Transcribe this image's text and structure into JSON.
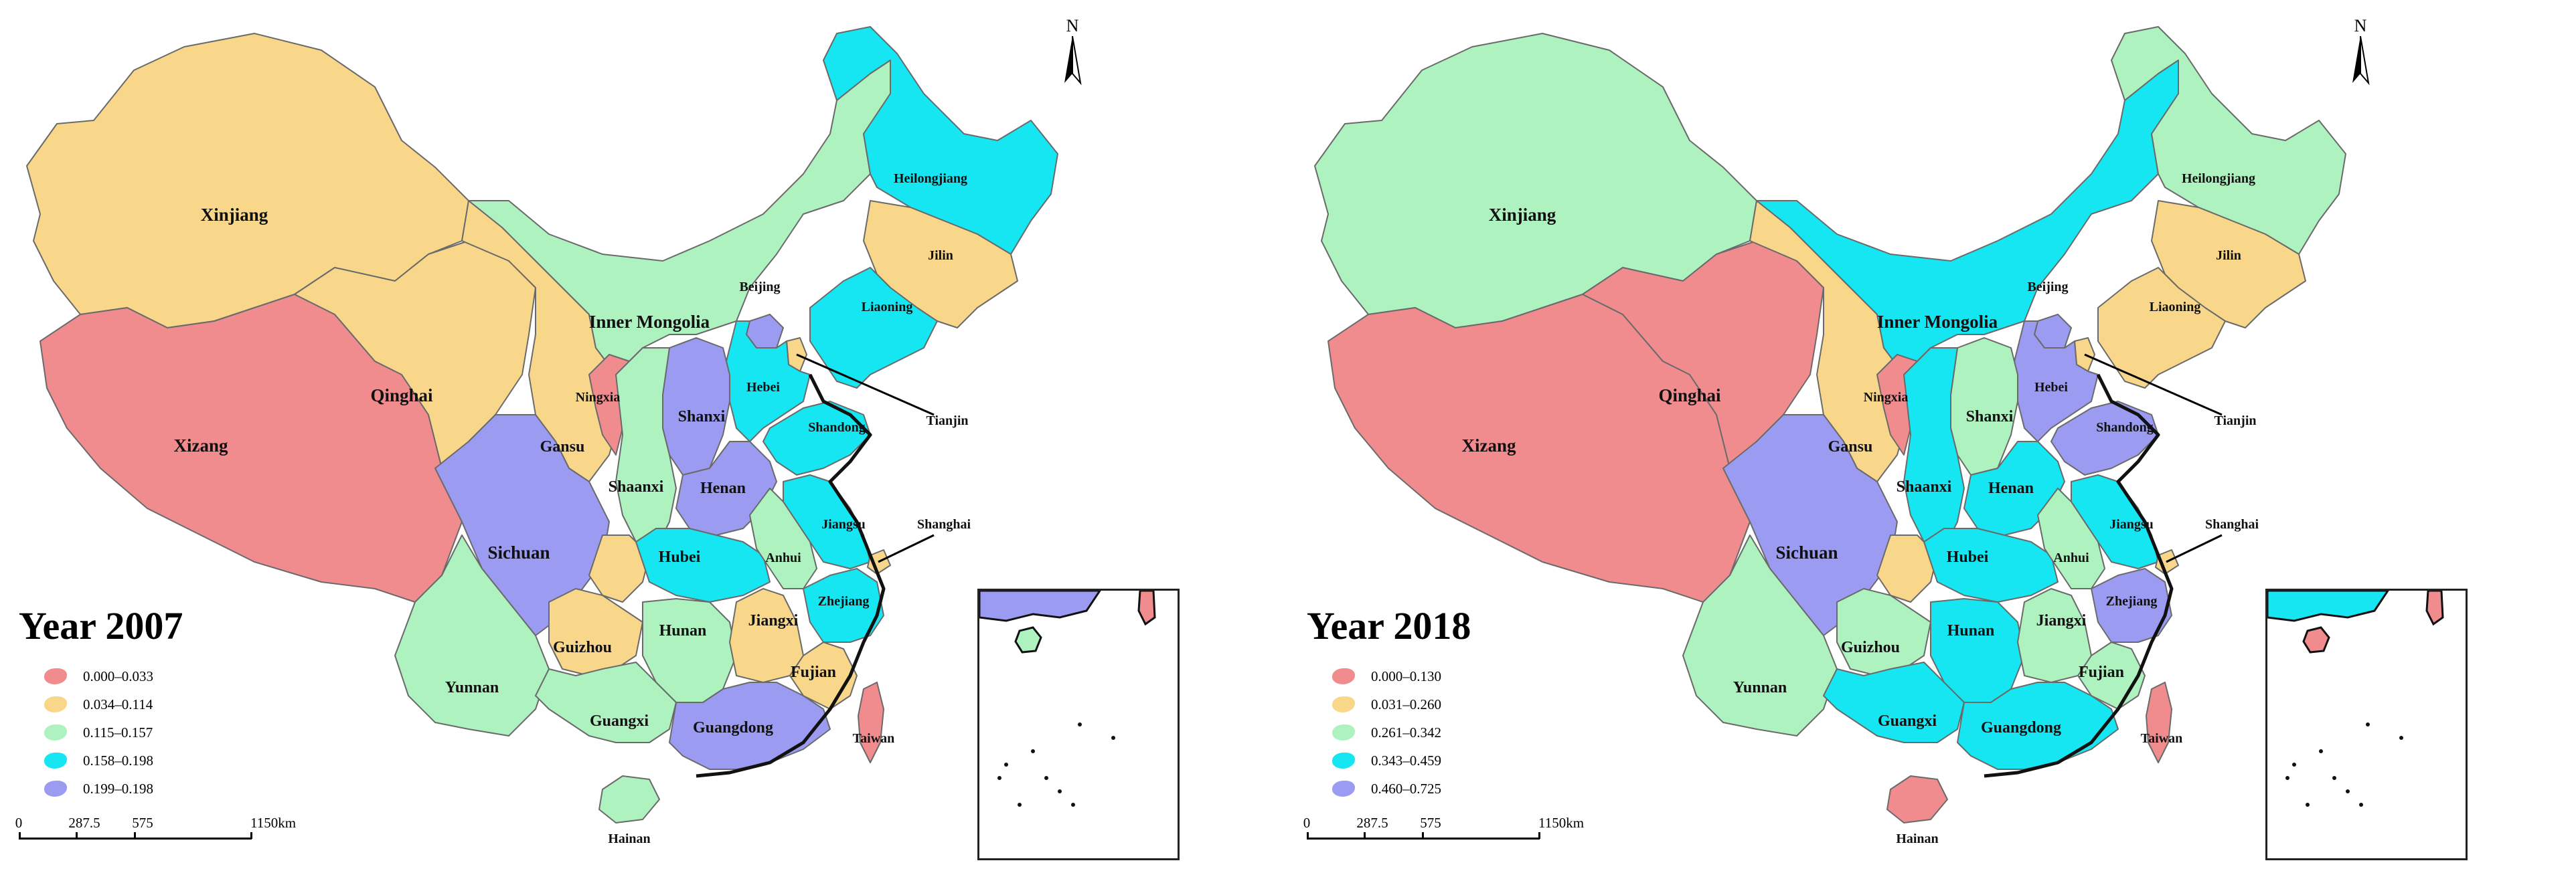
{
  "panels": [
    {
      "id": "p2007",
      "title": "Year 2007",
      "legend": [
        {
          "label": "0.000–0.033",
          "color": "#f08c8e"
        },
        {
          "label": "0.034–0.114",
          "color": "#f9d78a"
        },
        {
          "label": "0.115–0.157",
          "color": "#aef2c0"
        },
        {
          "label": "0.158–0.198",
          "color": "#15e6f2"
        },
        {
          "label": "0.199–0.198",
          "color": "#9b9bf2"
        }
      ],
      "classes": {
        "Xinjiang": 1,
        "Xizang": 0,
        "Qinghai": 1,
        "Gansu": 1,
        "Ningxia": 0,
        "Inner Mongolia": 2,
        "Heilongjiang": 3,
        "Jilin": 1,
        "Liaoning": 3,
        "Beijing": 4,
        "Tianjin": 1,
        "Hebei": 3,
        "Shanxi": 4,
        "Shandong": 3,
        "Shaanxi": 2,
        "Henan": 4,
        "Sichuan": 4,
        "Yunnan": 2,
        "Guizhou": 1,
        "Chongqing": 1,
        "Hubei": 3,
        "Hunan": 2,
        "Guangxi": 2,
        "Guangdong": 4,
        "Jiangxi": 1,
        "Fujian": 1,
        "Zhejiang": 3,
        "Jiangsu": 3,
        "Anhui": 2,
        "Shanghai": 1,
        "Hainan": 2,
        "Taiwan": 0
      }
    },
    {
      "id": "p2018",
      "title": "Year 2018",
      "legend": [
        {
          "label": "0.000–0.130",
          "color": "#f08c8e"
        },
        {
          "label": "0.031–0.260",
          "color": "#f9d78a"
        },
        {
          "label": "0.261–0.342",
          "color": "#aef2c0"
        },
        {
          "label": "0.343–0.459",
          "color": "#15e6f2"
        },
        {
          "label": "0.460–0.725",
          "color": "#9b9bf2"
        }
      ],
      "classes": {
        "Xinjiang": 2,
        "Xizang": 0,
        "Qinghai": 0,
        "Gansu": 1,
        "Ningxia": 0,
        "Inner Mongolia": 3,
        "Heilongjiang": 2,
        "Jilin": 1,
        "Liaoning": 1,
        "Beijing": 4,
        "Tianjin": 1,
        "Hebei": 4,
        "Shanxi": 2,
        "Shandong": 4,
        "Shaanxi": 3,
        "Henan": 3,
        "Sichuan": 4,
        "Yunnan": 2,
        "Guizhou": 2,
        "Chongqing": 1,
        "Hubei": 3,
        "Hunan": 3,
        "Guangxi": 3,
        "Guangdong": 3,
        "Jiangxi": 2,
        "Fujian": 2,
        "Zhejiang": 4,
        "Jiangsu": 3,
        "Anhui": 2,
        "Shanghai": 1,
        "Hainan": 0,
        "Taiwan": 0
      }
    }
  ],
  "scale": {
    "labels": [
      "0",
      "287.5",
      "575",
      "1150km"
    ]
  },
  "north_label": "N"
}
